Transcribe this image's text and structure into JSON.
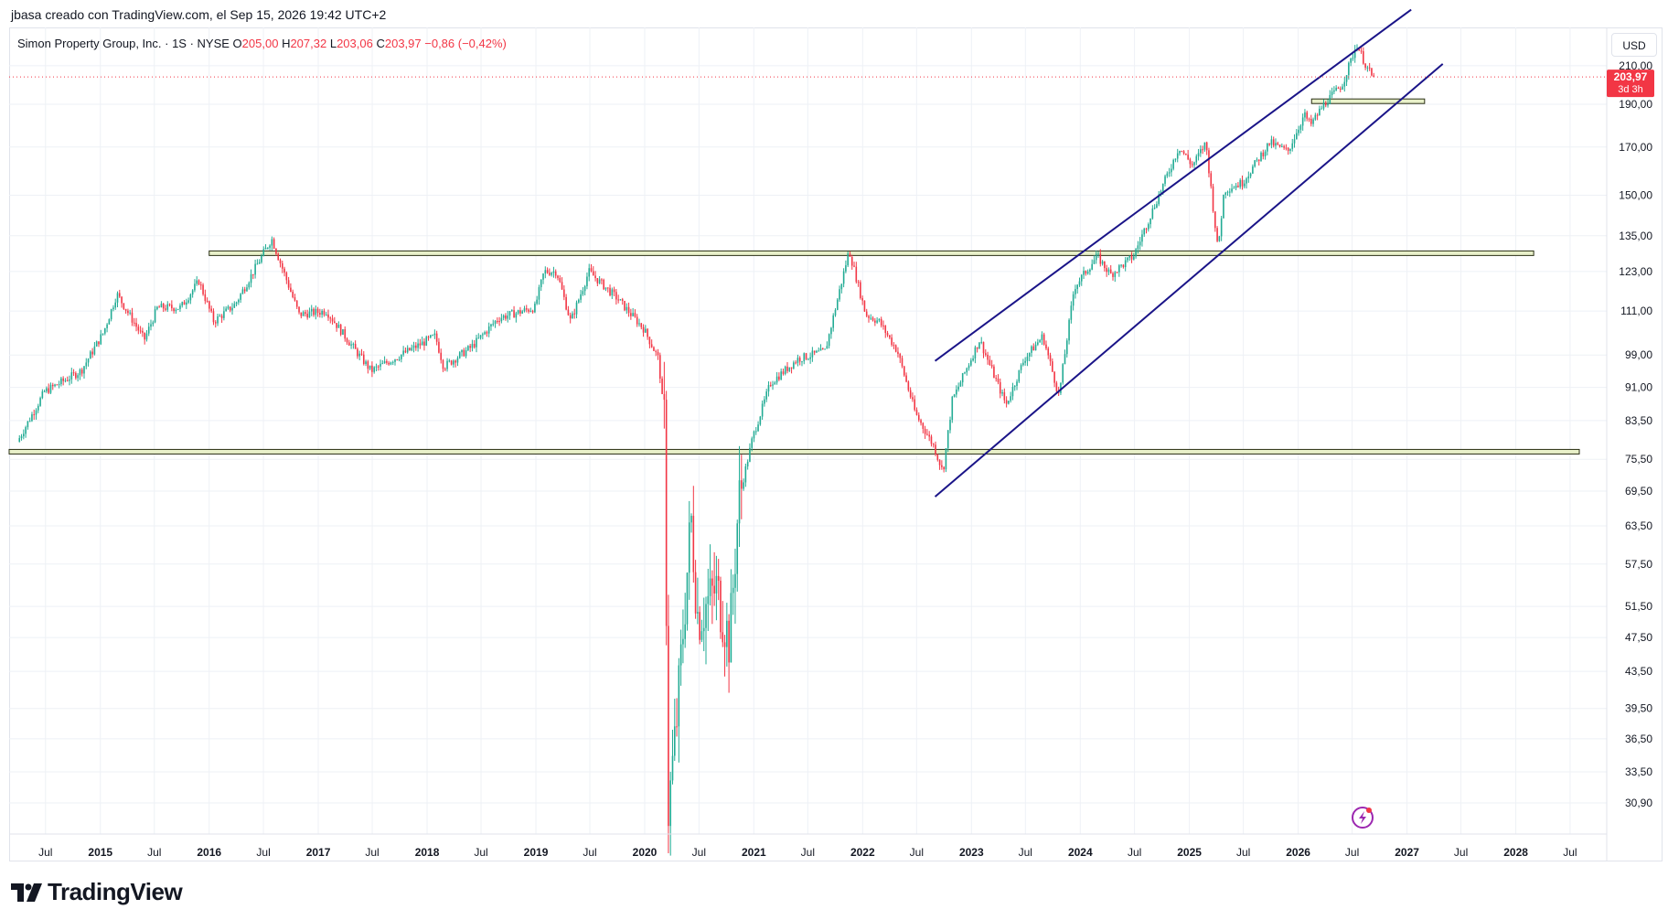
{
  "header": {
    "attribution": "jbasa creado con TradingView.com, el Sep 15, 2026 19:42 UTC+2"
  },
  "legend": {
    "symbol": "Simon Property Group, Inc. · 1S · NYSE",
    "open_label": "O",
    "open": "205,00",
    "high_label": "H",
    "high": "207,32",
    "low_label": "L",
    "low": "203,06",
    "close_label": "C",
    "close": "203,97",
    "change": "−0,86 (−0,42%)"
  },
  "currency": "USD",
  "price_badge": {
    "price": "203,97",
    "countdown": "3d 3h",
    "color": "#f23645"
  },
  "logo": {
    "text": "TradingView"
  },
  "colors": {
    "up": "#22ab94",
    "down": "#f23645",
    "channel": "#1a1488",
    "level_fill": "#e8f0c9",
    "level_border": "#2a2f14",
    "grid": "#eef1f6"
  },
  "chart_data": {
    "type": "candlestick",
    "symbol": "SPG",
    "interval": "1S",
    "currency": "USD",
    "y_scale": "log",
    "y_ticks": [
      "210,00",
      "190,00",
      "170,00",
      "150,00",
      "135,00",
      "123,00",
      "111,00",
      "99,00",
      "91,00",
      "83,50",
      "75,50",
      "69,50",
      "63,50",
      "57,50",
      "51,50",
      "47,50",
      "43,50",
      "39,50",
      "36,50",
      "33,50",
      "30,90"
    ],
    "x_ticks": [
      "Jul",
      "2015",
      "Jul",
      "2016",
      "Jul",
      "2017",
      "Jul",
      "2018",
      "Jul",
      "2019",
      "Jul",
      "2020",
      "Jul",
      "2021",
      "Jul",
      "2022",
      "Jul",
      "2023",
      "Jul",
      "2024",
      "Jul",
      "2025",
      "Jul",
      "2026",
      "Jul",
      "2027",
      "Jul",
      "2028",
      "Jul"
    ],
    "x_range": [
      "2014-03-01",
      "2028-11-01"
    ],
    "y_range": [
      28.5,
      232
    ],
    "last_price": 203.97,
    "anchors": [
      [
        "2014-04-01",
        79
      ],
      [
        "2014-07-01",
        90
      ],
      [
        "2014-11-01",
        95
      ],
      [
        "2015-01-15",
        105
      ],
      [
        "2015-03-01",
        116
      ],
      [
        "2015-06-01",
        103
      ],
      [
        "2015-07-15",
        112
      ],
      [
        "2015-10-01",
        112
      ],
      [
        "2015-12-01",
        120
      ],
      [
        "2016-01-20",
        108
      ],
      [
        "2016-04-01",
        113
      ],
      [
        "2016-08-01",
        134
      ],
      [
        "2016-11-01",
        110
      ],
      [
        "2017-02-01",
        111
      ],
      [
        "2017-05-01",
        101
      ],
      [
        "2017-07-01",
        95
      ],
      [
        "2017-11-01",
        100
      ],
      [
        "2018-02-01",
        104
      ],
      [
        "2018-03-01",
        96
      ],
      [
        "2018-06-01",
        101
      ],
      [
        "2018-09-01",
        109
      ],
      [
        "2019-01-01",
        112
      ],
      [
        "2019-02-01",
        123
      ],
      [
        "2019-03-15",
        123
      ],
      [
        "2019-05-01",
        108
      ],
      [
        "2019-07-01",
        123
      ],
      [
        "2019-10-01",
        115
      ],
      [
        "2020-01-01",
        106
      ],
      [
        "2020-02-20",
        98
      ],
      [
        "2020-03-12",
        82
      ],
      [
        "2020-03-23",
        30
      ],
      [
        "2020-04-20",
        38
      ],
      [
        "2020-06-08",
        65
      ],
      [
        "2020-07-01",
        50
      ],
      [
        "2020-09-01",
        54
      ],
      [
        "2020-10-15",
        47
      ],
      [
        "2020-11-15",
        68
      ],
      [
        "2021-01-01",
        80
      ],
      [
        "2021-03-01",
        92
      ],
      [
        "2021-06-01",
        98
      ],
      [
        "2021-09-01",
        100
      ],
      [
        "2021-11-20",
        130
      ],
      [
        "2022-01-15",
        110
      ],
      [
        "2022-03-01",
        108
      ],
      [
        "2022-05-01",
        100
      ],
      [
        "2022-07-01",
        85
      ],
      [
        "2022-09-01",
        78
      ],
      [
        "2022-10-01",
        73
      ],
      [
        "2022-11-01",
        88
      ],
      [
        "2023-02-01",
        103
      ],
      [
        "2023-03-15",
        95
      ],
      [
        "2023-05-01",
        87
      ],
      [
        "2023-07-01",
        98
      ],
      [
        "2023-09-01",
        104
      ],
      [
        "2023-10-25",
        89
      ],
      [
        "2023-12-15",
        118
      ],
      [
        "2024-03-01",
        128
      ],
      [
        "2024-04-15",
        122
      ],
      [
        "2024-07-01",
        128
      ],
      [
        "2024-10-01",
        152
      ],
      [
        "2024-12-01",
        170
      ],
      [
        "2025-01-15",
        162
      ],
      [
        "2025-03-01",
        172
      ],
      [
        "2025-04-10",
        130
      ],
      [
        "2025-05-01",
        152
      ],
      [
        "2025-07-01",
        155
      ],
      [
        "2025-10-01",
        172
      ],
      [
        "2025-12-01",
        168
      ],
      [
        "2026-01-25",
        185
      ],
      [
        "2026-02-15",
        180
      ],
      [
        "2026-04-01",
        190
      ],
      [
        "2026-06-01",
        200
      ],
      [
        "2026-07-20",
        222
      ],
      [
        "2026-08-20",
        210
      ],
      [
        "2026-09-10",
        203.97
      ]
    ],
    "annotations": {
      "support_lines": [
        {
          "from": "2016-01-01",
          "to": "2028-03-01",
          "price": 129
        },
        {
          "from": "2014-03-01",
          "to": "2028-08-01",
          "price": 77
        },
        {
          "from": "2026-02-15",
          "to": "2027-03-01",
          "price": 191.5
        }
      ],
      "channel": [
        {
          "from": [
            "2022-09-01",
            97.5
          ],
          "to": [
            "2027-01-15",
            243
          ]
        },
        {
          "from": [
            "2022-09-01",
            68.5
          ],
          "to": [
            "2027-05-01",
            211
          ]
        }
      ]
    }
  }
}
